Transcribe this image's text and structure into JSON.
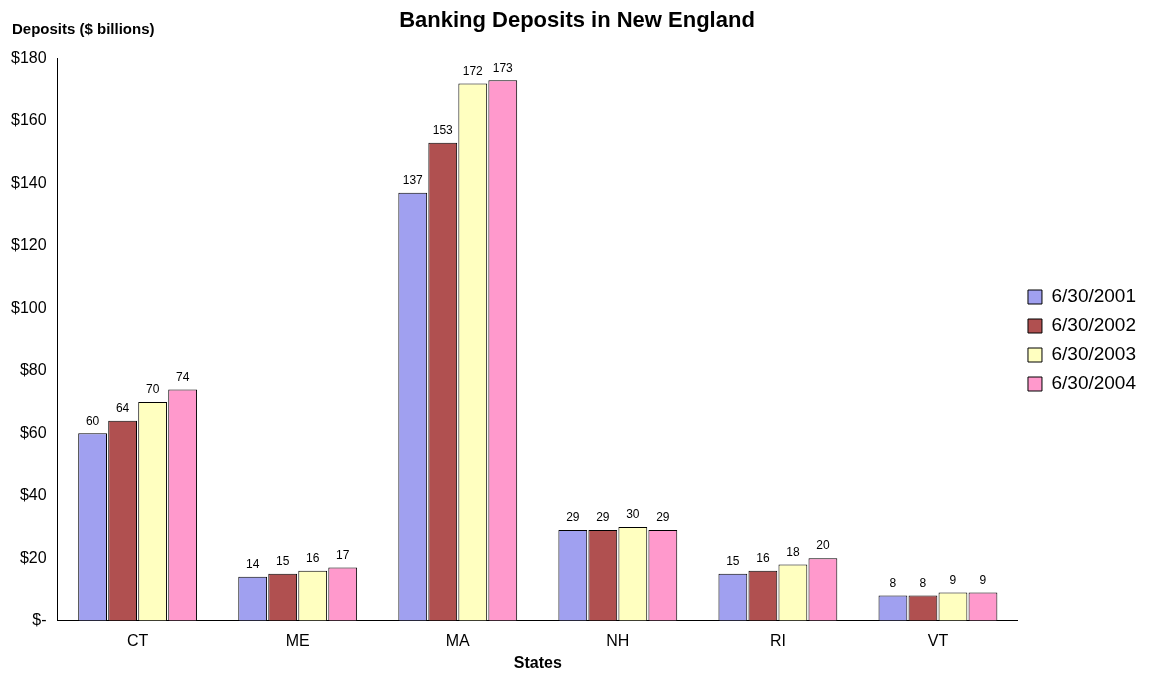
{
  "chart_data": {
    "type": "bar",
    "title": "Banking Deposits in New England",
    "ylabel": "Deposits ($ billions)",
    "xlabel": "States",
    "categories": [
      "CT",
      "ME",
      "MA",
      "NH",
      "RI",
      "VT"
    ],
    "series": [
      {
        "name": "6/30/2001",
        "color": "#a0a0f0",
        "values": [
          60,
          14,
          137,
          29,
          15,
          8
        ]
      },
      {
        "name": "6/30/2002",
        "color": "#b05050",
        "values": [
          64,
          15,
          153,
          29,
          16,
          8
        ]
      },
      {
        "name": "6/30/2003",
        "color": "#ffffc0",
        "values": [
          70,
          16,
          172,
          30,
          18,
          9
        ]
      },
      {
        "name": "6/30/2004",
        "color": "#ff99cc",
        "values": [
          74,
          17,
          173,
          29,
          20,
          9
        ]
      }
    ],
    "ylim": [
      0,
      180
    ],
    "yticks": [
      {
        "value": 0,
        "label": "$-"
      },
      {
        "value": 20,
        "label": "$20"
      },
      {
        "value": 40,
        "label": "$40"
      },
      {
        "value": 60,
        "label": "$60"
      },
      {
        "value": 80,
        "label": "$80"
      },
      {
        "value": 100,
        "label": "$100"
      },
      {
        "value": 120,
        "label": "$120"
      },
      {
        "value": 140,
        "label": "$140"
      },
      {
        "value": 160,
        "label": "$160"
      },
      {
        "value": 180,
        "label": "$180"
      }
    ],
    "grid": false,
    "legend": "right",
    "data_labels": true
  }
}
